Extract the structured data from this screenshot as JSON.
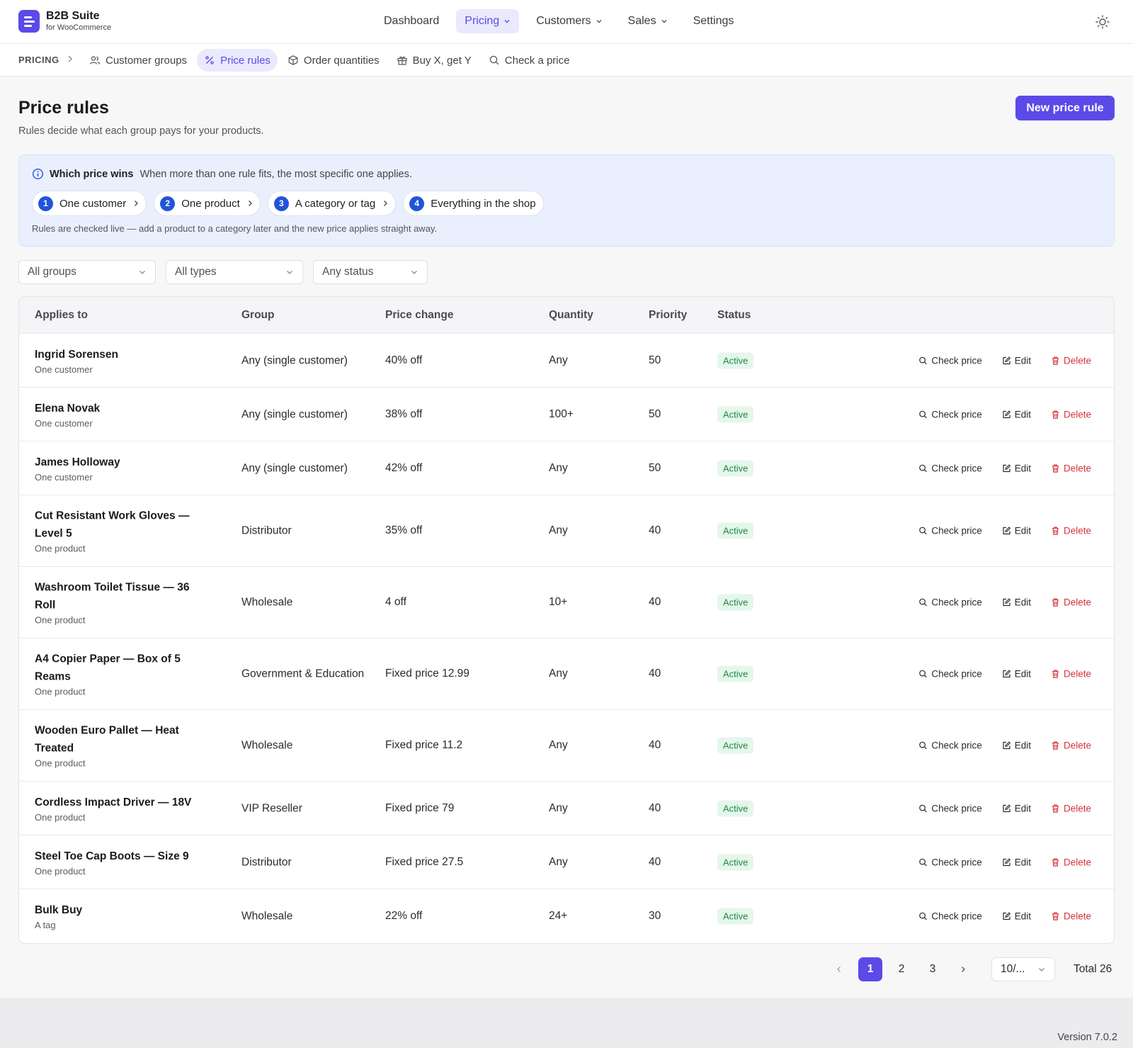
{
  "brand": {
    "name": "B2B Suite",
    "sub": "for WooCommerce"
  },
  "nav": {
    "dashboard": "Dashboard",
    "pricing": "Pricing",
    "customers": "Customers",
    "sales": "Sales",
    "settings": "Settings"
  },
  "subnav": {
    "root": "PRICING",
    "tabs": [
      "Customer groups",
      "Price rules",
      "Order quantities",
      "Buy X, get Y",
      "Check a price"
    ]
  },
  "page": {
    "title": "Price rules",
    "subtitle": "Rules decide what each group pays for your products.",
    "new_button": "New price rule"
  },
  "info": {
    "title": "Which price wins",
    "desc": "When more than one rule fits, the most specific one applies.",
    "steps": [
      {
        "num": "1",
        "label": "One customer"
      },
      {
        "num": "2",
        "label": "One product"
      },
      {
        "num": "3",
        "label": "A category or tag"
      },
      {
        "num": "4",
        "label": "Everything in the shop"
      }
    ],
    "footnote": "Rules are checked live — add a product to a category later and the new price applies straight away."
  },
  "filters": {
    "groups": "All groups",
    "types": "All types",
    "status": "Any status"
  },
  "table": {
    "headers": {
      "applies": "Applies to",
      "group": "Group",
      "price": "Price change",
      "qty": "Quantity",
      "priority": "Priority",
      "status": "Status"
    },
    "actions": {
      "check": "Check price",
      "edit": "Edit",
      "delete": "Delete"
    },
    "rows": [
      {
        "name": "Ingrid Sorensen",
        "kind": "One customer",
        "group": "Any (single customer)",
        "price": "40% off",
        "qty": "Any",
        "priority": "50",
        "status": "Active"
      },
      {
        "name": "Elena Novak",
        "kind": "One customer",
        "group": "Any (single customer)",
        "price": "38% off",
        "qty": "100+",
        "priority": "50",
        "status": "Active"
      },
      {
        "name": "James Holloway",
        "kind": "One customer",
        "group": "Any (single customer)",
        "price": "42% off",
        "qty": "Any",
        "priority": "50",
        "status": "Active"
      },
      {
        "name": "Cut Resistant Work Gloves — Level 5",
        "kind": "One product",
        "group": "Distributor",
        "price": "35% off",
        "qty": "Any",
        "priority": "40",
        "status": "Active"
      },
      {
        "name": "Washroom Toilet Tissue — 36 Roll",
        "kind": "One product",
        "group": "Wholesale",
        "price": "4 off",
        "qty": "10+",
        "priority": "40",
        "status": "Active"
      },
      {
        "name": "A4 Copier Paper — Box of 5 Reams",
        "kind": "One product",
        "group": "Government & Education",
        "price": "Fixed price 12.99",
        "qty": "Any",
        "priority": "40",
        "status": "Active"
      },
      {
        "name": "Wooden Euro Pallet — Heat Treated",
        "kind": "One product",
        "group": "Wholesale",
        "price": "Fixed price 11.2",
        "qty": "Any",
        "priority": "40",
        "status": "Active"
      },
      {
        "name": "Cordless Impact Driver — 18V",
        "kind": "One product",
        "group": "VIP Reseller",
        "price": "Fixed price 79",
        "qty": "Any",
        "priority": "40",
        "status": "Active"
      },
      {
        "name": "Steel Toe Cap Boots — Size 9",
        "kind": "One product",
        "group": "Distributor",
        "price": "Fixed price 27.5",
        "qty": "Any",
        "priority": "40",
        "status": "Active"
      },
      {
        "name": "Bulk Buy",
        "kind": "A tag",
        "group": "Wholesale",
        "price": "22% off",
        "qty": "24+",
        "priority": "30",
        "status": "Active"
      }
    ]
  },
  "pagination": {
    "pages": [
      "1",
      "2",
      "3"
    ],
    "current": "1",
    "page_size": "10/...",
    "total": "Total 26"
  },
  "footer": {
    "version": "Version 7.0.2"
  },
  "colors": {
    "accent": "#5b4ae8",
    "info_bg": "#e9effc",
    "step_num": "#2254d9",
    "status_active": "#1f8a45",
    "danger": "#d6323a"
  }
}
